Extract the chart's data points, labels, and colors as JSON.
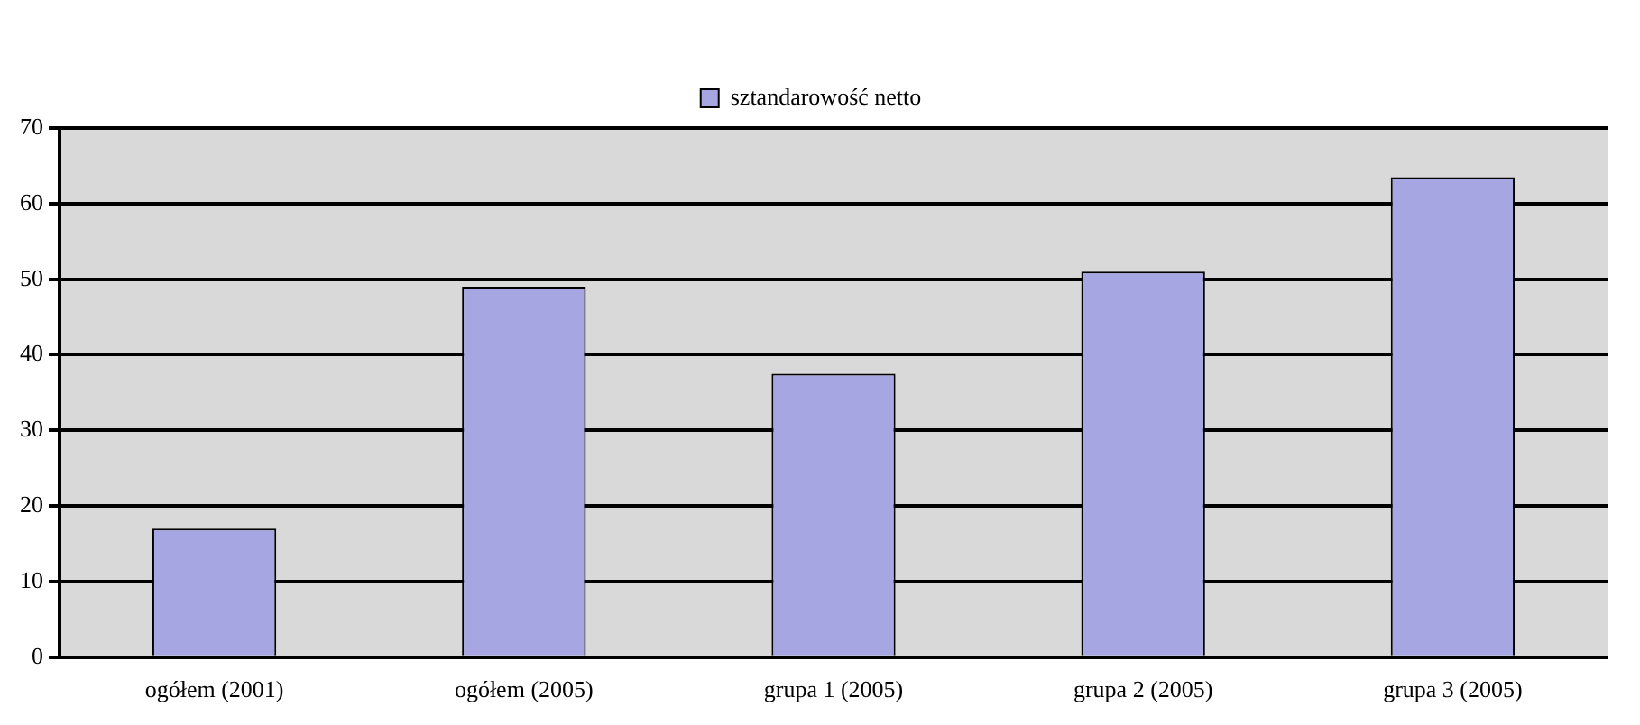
{
  "chart_data": {
    "type": "bar",
    "categories": [
      "ogółem (2001)",
      "ogółem (2005)",
      "grupa 1 (2005)",
      "grupa 2 (2005)",
      "grupa 3 (2005)"
    ],
    "series": [
      {
        "name": "sztandarowość netto",
        "color": "#a6a6e2",
        "values": [
          17,
          49,
          37.5,
          51,
          63.5
        ]
      }
    ],
    "ylim": [
      0,
      70
    ],
    "yticks": [
      0,
      10,
      20,
      30,
      40,
      50,
      60,
      70
    ],
    "grid": "y",
    "legend": "top"
  }
}
